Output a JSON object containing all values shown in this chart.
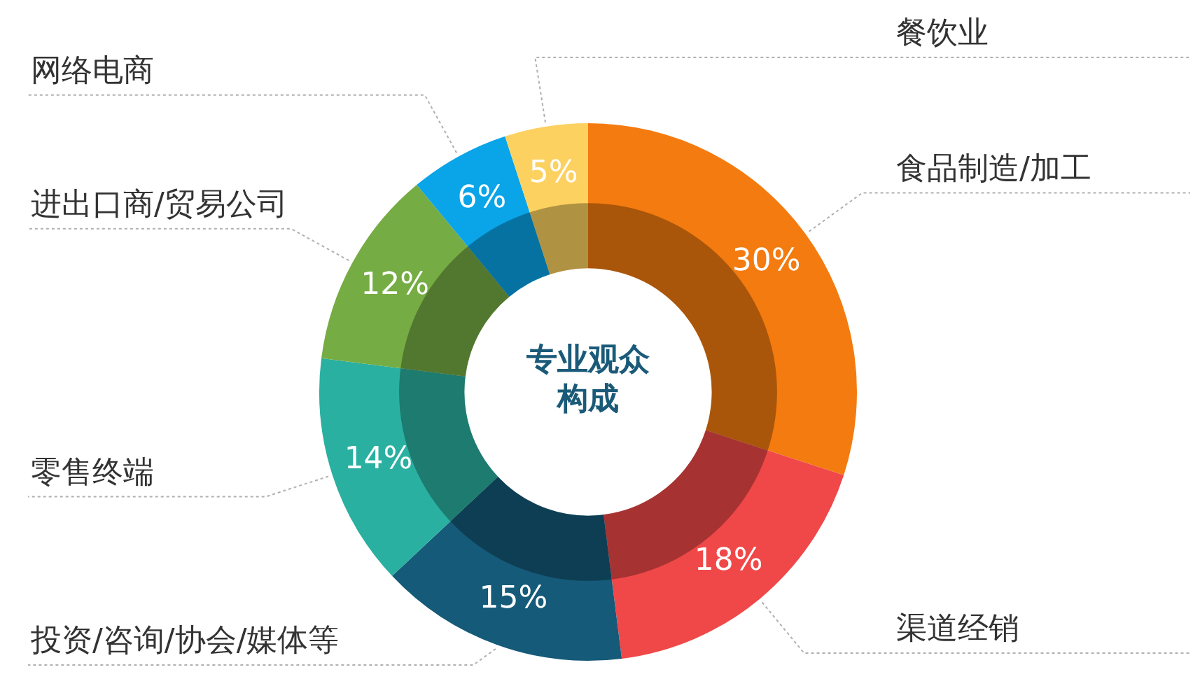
{
  "chart_data": {
    "type": "donut",
    "title": "专业观众构成",
    "categories": [
      "食品制造/加工",
      "渠道经销",
      "投资/咨询/协会/媒体等",
      "零售终端",
      "进出口商/贸易公司",
      "网络电商",
      "餐饮业"
    ],
    "values": [
      30,
      18,
      15,
      14,
      12,
      6,
      5
    ],
    "value_labels": [
      "30%",
      "18%",
      "15%",
      "14%",
      "12%",
      "6%",
      "5%"
    ],
    "colors": [
      "#f47b0f",
      "#f04848",
      "#155a78",
      "#2ab0a0",
      "#76ac44",
      "#0aa4e8",
      "#fdd160"
    ],
    "legend": false
  }
}
